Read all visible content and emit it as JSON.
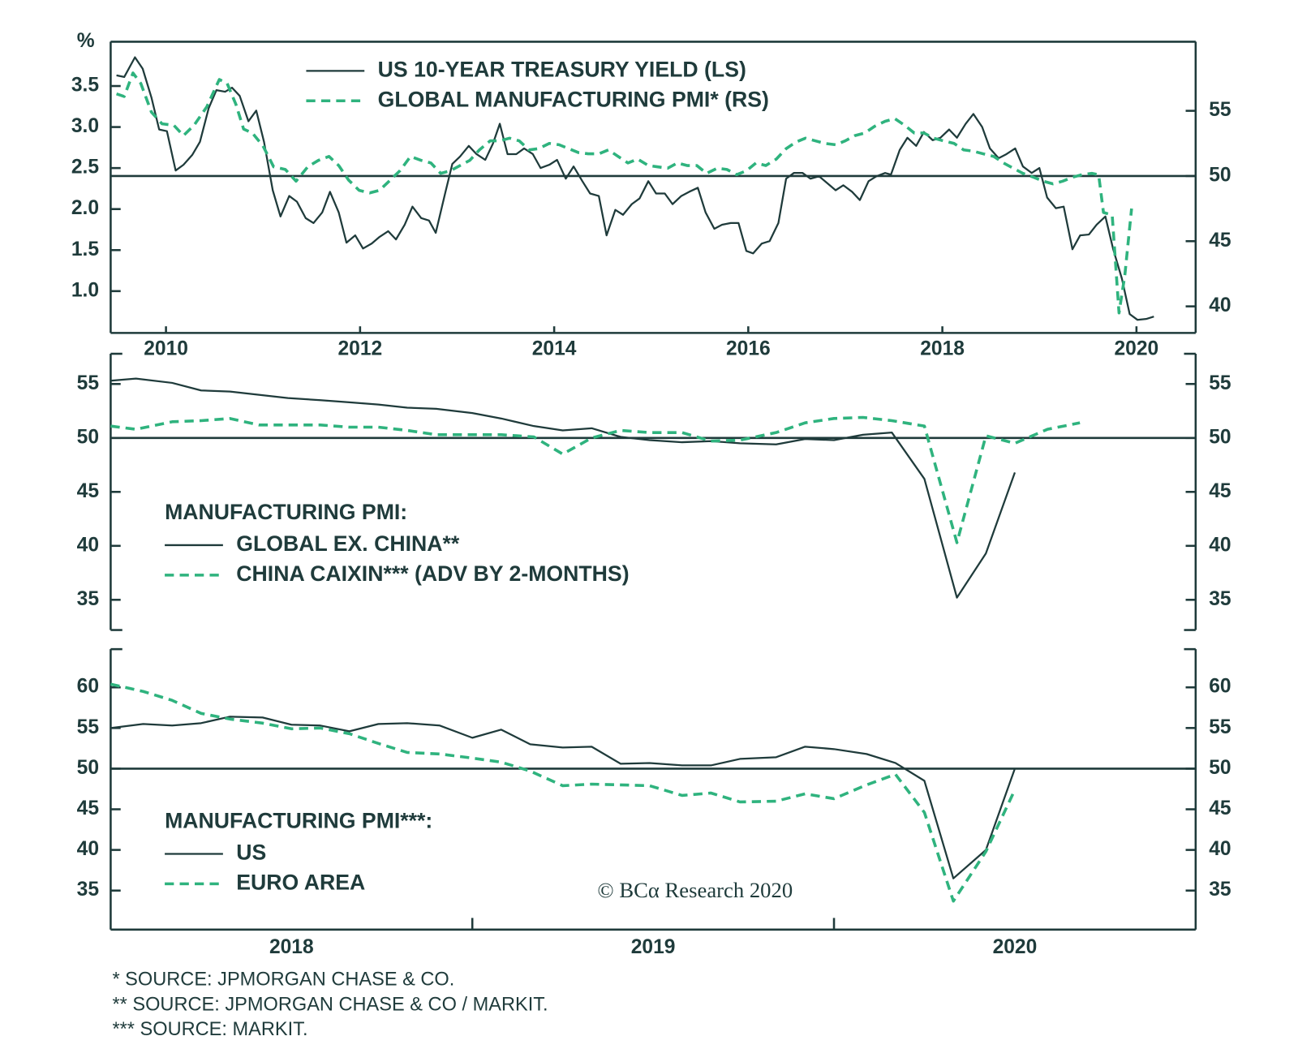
{
  "chart_data": [
    {
      "type": "line",
      "ylabel": "%",
      "xlim": [
        2009.43,
        2020.61
      ],
      "xticks": [
        2010,
        2012,
        2014,
        2016,
        2018,
        2020
      ],
      "ylim": [
        0.49,
        4.04
      ],
      "yticks": [
        {
          "value": 1,
          "label": "1.0"
        },
        1.5,
        {
          "value": 2,
          "label": "2.0"
        },
        2.5,
        {
          "value": 3,
          "label": "3.0"
        },
        3.5
      ],
      "y2lim": [
        37.96,
        60.3
      ],
      "y2ticks": [
        40,
        45,
        50,
        55
      ],
      "hline": 50,
      "series": [
        {
          "name": "US 10-YEAR TREASURY YIELD (LS)",
          "color": "#1f3b3b",
          "line_style": "solid",
          "x": [
            2009.49,
            2009.57,
            2009.68,
            2009.76,
            2009.85,
            2009.93,
            2010.01,
            2010.1,
            2010.18,
            2010.27,
            2010.35,
            2010.44,
            2010.52,
            2010.61,
            2010.68,
            2010.76,
            2010.85,
            2010.93,
            2011.01,
            2011.1,
            2011.18,
            2011.27,
            2011.35,
            2011.44,
            2011.52,
            2011.61,
            2011.69,
            2011.78,
            2011.86,
            2011.95,
            2012.03,
            2012.12,
            2012.2,
            2012.29,
            2012.37,
            2012.46,
            2012.54,
            2012.63,
            2012.71,
            2012.78,
            2012.88,
            2012.95,
            2013.03,
            2013.12,
            2013.2,
            2013.29,
            2013.37,
            2013.44,
            2013.52,
            2013.61,
            2013.69,
            2013.78,
            2013.86,
            2013.95,
            2014.03,
            2014.12,
            2014.2,
            2014.29,
            2014.37,
            2014.46,
            2014.54,
            2014.63,
            2014.71,
            2014.8,
            2014.88,
            2014.97,
            2015.05,
            2015.14,
            2015.22,
            2015.31,
            2015.39,
            2015.48,
            2015.56,
            2015.65,
            2015.73,
            2015.82,
            2015.9,
            2015.98,
            2016.05,
            2016.14,
            2016.22,
            2016.31,
            2016.39,
            2016.47,
            2016.56,
            2016.64,
            2016.73,
            2016.81,
            2016.9,
            2016.98,
            2017.07,
            2017.15,
            2017.24,
            2017.32,
            2017.41,
            2017.47,
            2017.56,
            2017.64,
            2017.73,
            2017.81,
            2017.9,
            2017.98,
            2018.07,
            2018.15,
            2018.24,
            2018.32,
            2018.41,
            2018.49,
            2018.58,
            2018.66,
            2018.75,
            2018.83,
            2018.92,
            2019.0,
            2019.08,
            2019.17,
            2019.25,
            2019.34,
            2019.42,
            2019.51,
            2019.59,
            2019.68,
            2019.76,
            2019.85,
            2019.93,
            2020.01,
            2020.1,
            2020.18
          ],
          "values": [
            3.63,
            3.61,
            3.85,
            3.71,
            3.36,
            2.97,
            2.95,
            2.47,
            2.54,
            2.66,
            2.82,
            3.23,
            3.45,
            3.43,
            3.48,
            3.38,
            3.07,
            3.2,
            2.82,
            2.23,
            1.91,
            2.16,
            2.09,
            1.89,
            1.83,
            1.96,
            2.21,
            1.96,
            1.59,
            1.68,
            1.52,
            1.58,
            1.66,
            1.73,
            1.63,
            1.81,
            2.03,
            1.89,
            1.86,
            1.71,
            2.21,
            2.55,
            2.64,
            2.77,
            2.67,
            2.6,
            2.8,
            3.04,
            2.67,
            2.67,
            2.74,
            2.67,
            2.5,
            2.54,
            2.6,
            2.37,
            2.52,
            2.34,
            2.19,
            2.16,
            1.68,
            1.99,
            1.93,
            2.06,
            2.13,
            2.34,
            2.19,
            2.19,
            2.06,
            2.16,
            2.21,
            2.26,
            1.96,
            1.76,
            1.81,
            1.83,
            1.83,
            1.49,
            1.46,
            1.58,
            1.61,
            1.83,
            2.37,
            2.44,
            2.44,
            2.37,
            2.4,
            2.32,
            2.23,
            2.29,
            2.21,
            2.11,
            2.34,
            2.4,
            2.44,
            2.42,
            2.72,
            2.87,
            2.77,
            2.94,
            2.84,
            2.87,
            2.97,
            2.87,
            3.04,
            3.16,
            3.0,
            2.74,
            2.62,
            2.67,
            2.74,
            2.52,
            2.44,
            2.5,
            2.14,
            2.01,
            2.03,
            1.51,
            1.68,
            1.69,
            1.81,
            1.91,
            1.51,
            1.15,
            0.72,
            0.65,
            0.66,
            0.69
          ]
        },
        {
          "name": "GLOBAL MANUFACTURING PMI* (RS)",
          "color": "#2fb37e",
          "line_style": "dashed",
          "axis": "y2",
          "x": [
            2009.49,
            2009.57,
            2009.66,
            2009.74,
            2009.85,
            2009.96,
            2010.08,
            2010.18,
            2010.29,
            2010.42,
            2010.55,
            2010.63,
            2010.72,
            2010.8,
            2010.89,
            2011.0,
            2011.11,
            2011.23,
            2011.34,
            2011.46,
            2011.57,
            2011.68,
            2011.78,
            2011.88,
            2011.99,
            2012.1,
            2012.2,
            2012.3,
            2012.41,
            2012.52,
            2012.63,
            2012.73,
            2012.83,
            2012.93,
            2013.03,
            2013.13,
            2013.23,
            2013.34,
            2013.44,
            2013.54,
            2013.64,
            2013.74,
            2013.84,
            2013.95,
            2014.05,
            2014.15,
            2014.25,
            2014.35,
            2014.46,
            2014.56,
            2014.66,
            2014.76,
            2014.86,
            2014.97,
            2015.07,
            2015.17,
            2015.27,
            2015.37,
            2015.47,
            2015.57,
            2015.68,
            2015.78,
            2015.88,
            2015.98,
            2016.08,
            2016.18,
            2016.29,
            2016.39,
            2016.49,
            2016.59,
            2016.69,
            2016.79,
            2016.9,
            2017.0,
            2017.1,
            2017.2,
            2017.3,
            2017.41,
            2017.51,
            2017.61,
            2017.71,
            2017.81,
            2017.91,
            2018.01,
            2018.12,
            2018.22,
            2018.32,
            2018.42,
            2018.53,
            2018.63,
            2018.73,
            2018.83,
            2018.94,
            2019.04,
            2019.14,
            2019.24,
            2019.34,
            2019.44,
            2019.54,
            2019.61,
            2019.66,
            2019.75,
            2019.82,
            2019.88,
            2019.95
          ],
          "values": [
            56.3,
            56.1,
            57.9,
            57.1,
            54.9,
            54.0,
            53.9,
            53.1,
            53.9,
            55.3,
            57.4,
            57.1,
            55.5,
            53.6,
            53.3,
            52.3,
            50.7,
            50.5,
            49.6,
            50.7,
            51.2,
            51.5,
            50.8,
            49.7,
            48.9,
            48.7,
            48.9,
            49.6,
            50.4,
            51.5,
            51.2,
            51.0,
            50.2,
            50.4,
            50.8,
            51.2,
            52.0,
            52.7,
            52.7,
            52.9,
            52.7,
            52.0,
            52.1,
            52.5,
            52.4,
            52.1,
            51.8,
            51.7,
            51.7,
            52.0,
            51.5,
            51.0,
            51.3,
            50.8,
            50.7,
            50.6,
            51.0,
            50.8,
            50.8,
            50.2,
            50.6,
            50.5,
            50.1,
            50.4,
            51.0,
            50.8,
            51.3,
            52.1,
            52.6,
            52.9,
            52.7,
            52.5,
            52.4,
            52.7,
            53.1,
            53.3,
            53.8,
            54.2,
            54.4,
            53.9,
            53.3,
            53.3,
            52.9,
            52.7,
            52.5,
            52.0,
            51.9,
            51.7,
            51.5,
            51.0,
            50.6,
            50.2,
            49.9,
            49.6,
            49.4,
            49.6,
            49.9,
            50.1,
            50.2,
            50.1,
            47.2,
            47.0,
            39.5,
            42.4,
            47.5
          ]
        }
      ]
    },
    {
      "type": "line",
      "legend_title": "MANUFACTURING PMI:",
      "xlim": [
        2018,
        2021
      ],
      "ylim": [
        32.2,
        57.8
      ],
      "yticks": [
        35,
        40,
        45,
        50,
        55
      ],
      "y2lim": [
        32.2,
        57.8
      ],
      "y2ticks": [
        35,
        40,
        45,
        50,
        55
      ],
      "hline": 50,
      "series": [
        {
          "name": "GLOBAL EX. CHINA**",
          "color": "#1f3b3b",
          "line_style": "solid",
          "x": [
            2018.0,
            2018.07,
            2018.17,
            2018.25,
            2018.33,
            2018.41,
            2018.49,
            2018.58,
            2018.66,
            2018.74,
            2018.82,
            2018.9,
            2019.0,
            2019.08,
            2019.17,
            2019.25,
            2019.33,
            2019.41,
            2019.49,
            2019.58,
            2019.66,
            2019.74,
            2019.84,
            2019.92,
            2020.0,
            2020.08,
            2020.16,
            2020.25,
            2020.34,
            2020.42,
            2020.5
          ],
          "values": [
            55.3,
            55.5,
            55.1,
            54.4,
            54.3,
            54.0,
            53.7,
            53.5,
            53.3,
            53.1,
            52.8,
            52.7,
            52.3,
            51.8,
            51.1,
            50.7,
            50.9,
            50.1,
            49.8,
            49.6,
            49.7,
            49.5,
            49.4,
            49.9,
            49.8,
            50.3,
            50.5,
            46.2,
            35.2,
            39.3,
            46.8
          ]
        },
        {
          "name": "CHINA CAIXIN*** (ADV BY 2-MONTHS)",
          "color": "#2fb37e",
          "line_style": "dashed",
          "x": [
            2018.0,
            2018.07,
            2018.17,
            2018.25,
            2018.33,
            2018.41,
            2018.49,
            2018.58,
            2018.66,
            2018.74,
            2018.82,
            2018.9,
            2019.0,
            2019.08,
            2019.17,
            2019.25,
            2019.33,
            2019.41,
            2019.49,
            2019.58,
            2019.66,
            2019.74,
            2019.84,
            2019.92,
            2020.0,
            2020.08,
            2020.16,
            2020.25,
            2020.34,
            2020.42,
            2020.5,
            2020.59,
            2020.68
          ],
          "values": [
            51.1,
            50.8,
            51.5,
            51.6,
            51.8,
            51.2,
            51.2,
            51.2,
            51.0,
            51.0,
            50.7,
            50.3,
            50.3,
            50.3,
            50.1,
            48.5,
            50.0,
            50.7,
            50.5,
            50.5,
            49.7,
            49.8,
            50.5,
            51.4,
            51.8,
            51.9,
            51.6,
            51.1,
            40.3,
            50.2,
            49.5,
            50.8,
            51.4
          ]
        }
      ]
    },
    {
      "type": "line",
      "legend_title": "MANUFACTURING PMI***:",
      "xlim": [
        2018,
        2021
      ],
      "year_labels": [
        "2018",
        "2019",
        "2020"
      ],
      "ylim": [
        30.2,
        64.7
      ],
      "yticks": [
        35,
        40,
        45,
        50,
        55,
        60
      ],
      "y2lim": [
        30.2,
        64.7
      ],
      "y2ticks": [
        35,
        40,
        45,
        50,
        55,
        60
      ],
      "hline": 50,
      "series": [
        {
          "name": "US",
          "color": "#1f3b3b",
          "line_style": "solid",
          "x": [
            2018.0,
            2018.09,
            2018.17,
            2018.25,
            2018.33,
            2018.42,
            2018.5,
            2018.58,
            2018.66,
            2018.74,
            2018.82,
            2018.91,
            2019.0,
            2019.08,
            2019.16,
            2019.25,
            2019.33,
            2019.41,
            2019.49,
            2019.58,
            2019.66,
            2019.74,
            2019.84,
            2019.92,
            2020.0,
            2020.09,
            2020.17,
            2020.25,
            2020.33,
            2020.42,
            2020.5
          ],
          "values": [
            55.0,
            55.5,
            55.3,
            55.6,
            56.4,
            56.3,
            55.4,
            55.3,
            54.6,
            55.5,
            55.6,
            55.3,
            53.8,
            54.8,
            53.0,
            52.6,
            52.7,
            50.6,
            50.7,
            50.4,
            50.4,
            51.2,
            51.4,
            52.7,
            52.4,
            51.8,
            50.7,
            48.5,
            36.5,
            40.0,
            50.0
          ]
        },
        {
          "name": "EURO AREA",
          "color": "#2fb37e",
          "line_style": "dashed",
          "x": [
            2018.0,
            2018.09,
            2018.17,
            2018.25,
            2018.33,
            2018.42,
            2018.5,
            2018.58,
            2018.66,
            2018.74,
            2018.82,
            2018.91,
            2019.0,
            2019.08,
            2019.16,
            2019.25,
            2019.33,
            2019.41,
            2019.49,
            2019.58,
            2019.66,
            2019.74,
            2019.84,
            2019.92,
            2020.0,
            2020.09,
            2020.17,
            2020.25,
            2020.33,
            2020.42,
            2020.5
          ],
          "values": [
            60.4,
            59.5,
            58.4,
            56.8,
            56.1,
            55.6,
            54.9,
            55.0,
            54.3,
            53.1,
            52.0,
            51.8,
            51.3,
            50.8,
            49.7,
            47.9,
            48.1,
            48.0,
            47.9,
            46.7,
            47.0,
            45.9,
            46.0,
            46.9,
            46.3,
            48.0,
            49.3,
            44.6,
            33.7,
            39.8,
            47.4
          ]
        }
      ]
    }
  ],
  "credit": "© BCα Research 2020",
  "footnotes": [
    "*  SOURCE: JPMORGAN CHASE & CO.",
    "**  SOURCE: JPMORGAN CHASE & CO / MARKIT.",
    "*** SOURCE: MARKIT."
  ]
}
